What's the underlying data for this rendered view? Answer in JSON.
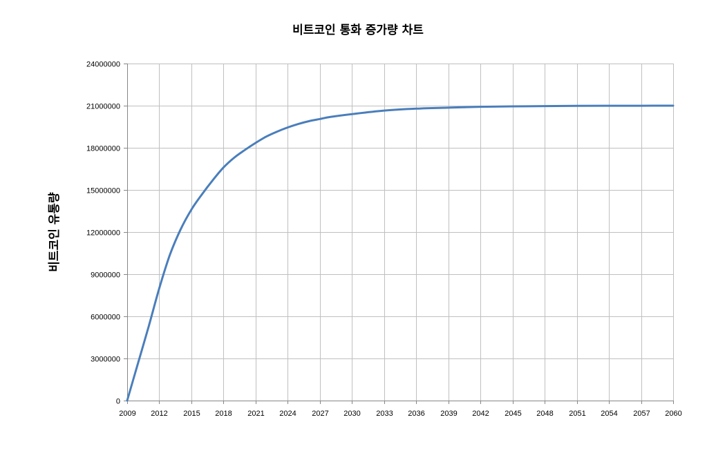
{
  "chart_data": {
    "type": "line",
    "title": "비트코인 통화 증가량 차트",
    "xlabel": "",
    "ylabel": "비트코인 유통량",
    "categories": [
      "2009",
      "2012",
      "2015",
      "2018",
      "2021",
      "2024",
      "2027",
      "2030",
      "2033",
      "2036",
      "2039",
      "2042",
      "2045",
      "2048",
      "2051",
      "2054",
      "2057",
      "2060"
    ],
    "ylim": [
      0,
      24000000
    ],
    "yticks": [
      "0",
      "3000000",
      "6000000",
      "9000000",
      "12000000",
      "15000000",
      "18000000",
      "21000000",
      "24000000"
    ],
    "grid": true,
    "legend": "none",
    "series": [
      {
        "color": "#4a7ebb",
        "x": [
          2009,
          2010,
          2011,
          2012,
          2013,
          2014,
          2015,
          2016,
          2017,
          2018,
          2019,
          2020,
          2021,
          2022,
          2023,
          2024,
          2025,
          2026,
          2027,
          2028,
          2030,
          2033,
          2036,
          2039,
          2042,
          2045,
          2048,
          2051,
          2054,
          2057,
          2060
        ],
        "values": [
          0,
          2630000,
          5250000,
          8000000,
          10400000,
          12200000,
          13600000,
          14700000,
          15700000,
          16600000,
          17300000,
          17850000,
          18350000,
          18800000,
          19150000,
          19450000,
          19700000,
          19900000,
          20050000,
          20200000,
          20400000,
          20650000,
          20790000,
          20860000,
          20920000,
          20950000,
          20970000,
          20985000,
          20992000,
          20996000,
          21000000
        ]
      }
    ]
  }
}
